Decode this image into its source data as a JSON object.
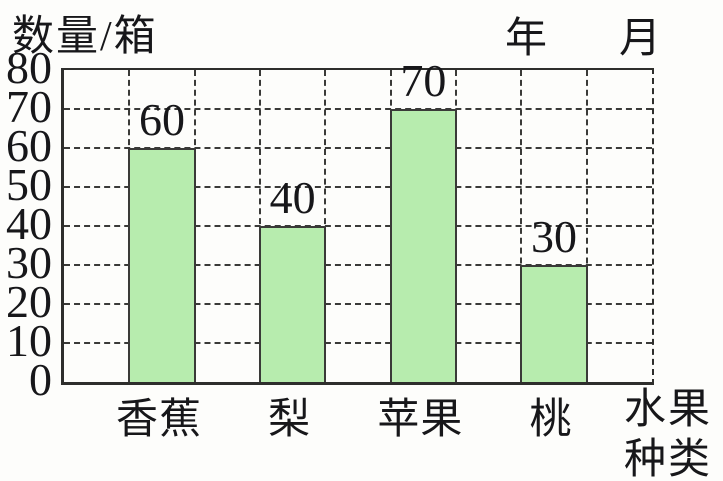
{
  "page": {
    "background_color": "#fdfdfb",
    "line_color": "#3a3a38",
    "text_color": "#17171a"
  },
  "labels": {
    "y_axis_title": "数量/箱",
    "year": "年",
    "month": "月",
    "x_axis_title_line1": "水果",
    "x_axis_title_line2": "种类"
  },
  "chart_data": {
    "type": "bar",
    "title": "",
    "categories": [
      "香蕉",
      "梨",
      "苹果",
      "桃"
    ],
    "values": [
      60,
      40,
      70,
      30
    ],
    "bar_value_labels": [
      "60",
      "40",
      "70",
      "30"
    ],
    "ylabel": "数量/箱",
    "xlabel": "水果种类",
    "top_right_annotation": "年 月",
    "ylim": [
      0,
      80
    ],
    "ytick_step": 10,
    "yticks": [
      80,
      70,
      60,
      50,
      40,
      30,
      20,
      10,
      0
    ],
    "grid": true,
    "grid_style": "dashed",
    "bar_color": "#b7ecae",
    "legend": false,
    "columns_total": 9,
    "bar_column_indices": [
      1,
      3,
      5,
      7
    ]
  }
}
